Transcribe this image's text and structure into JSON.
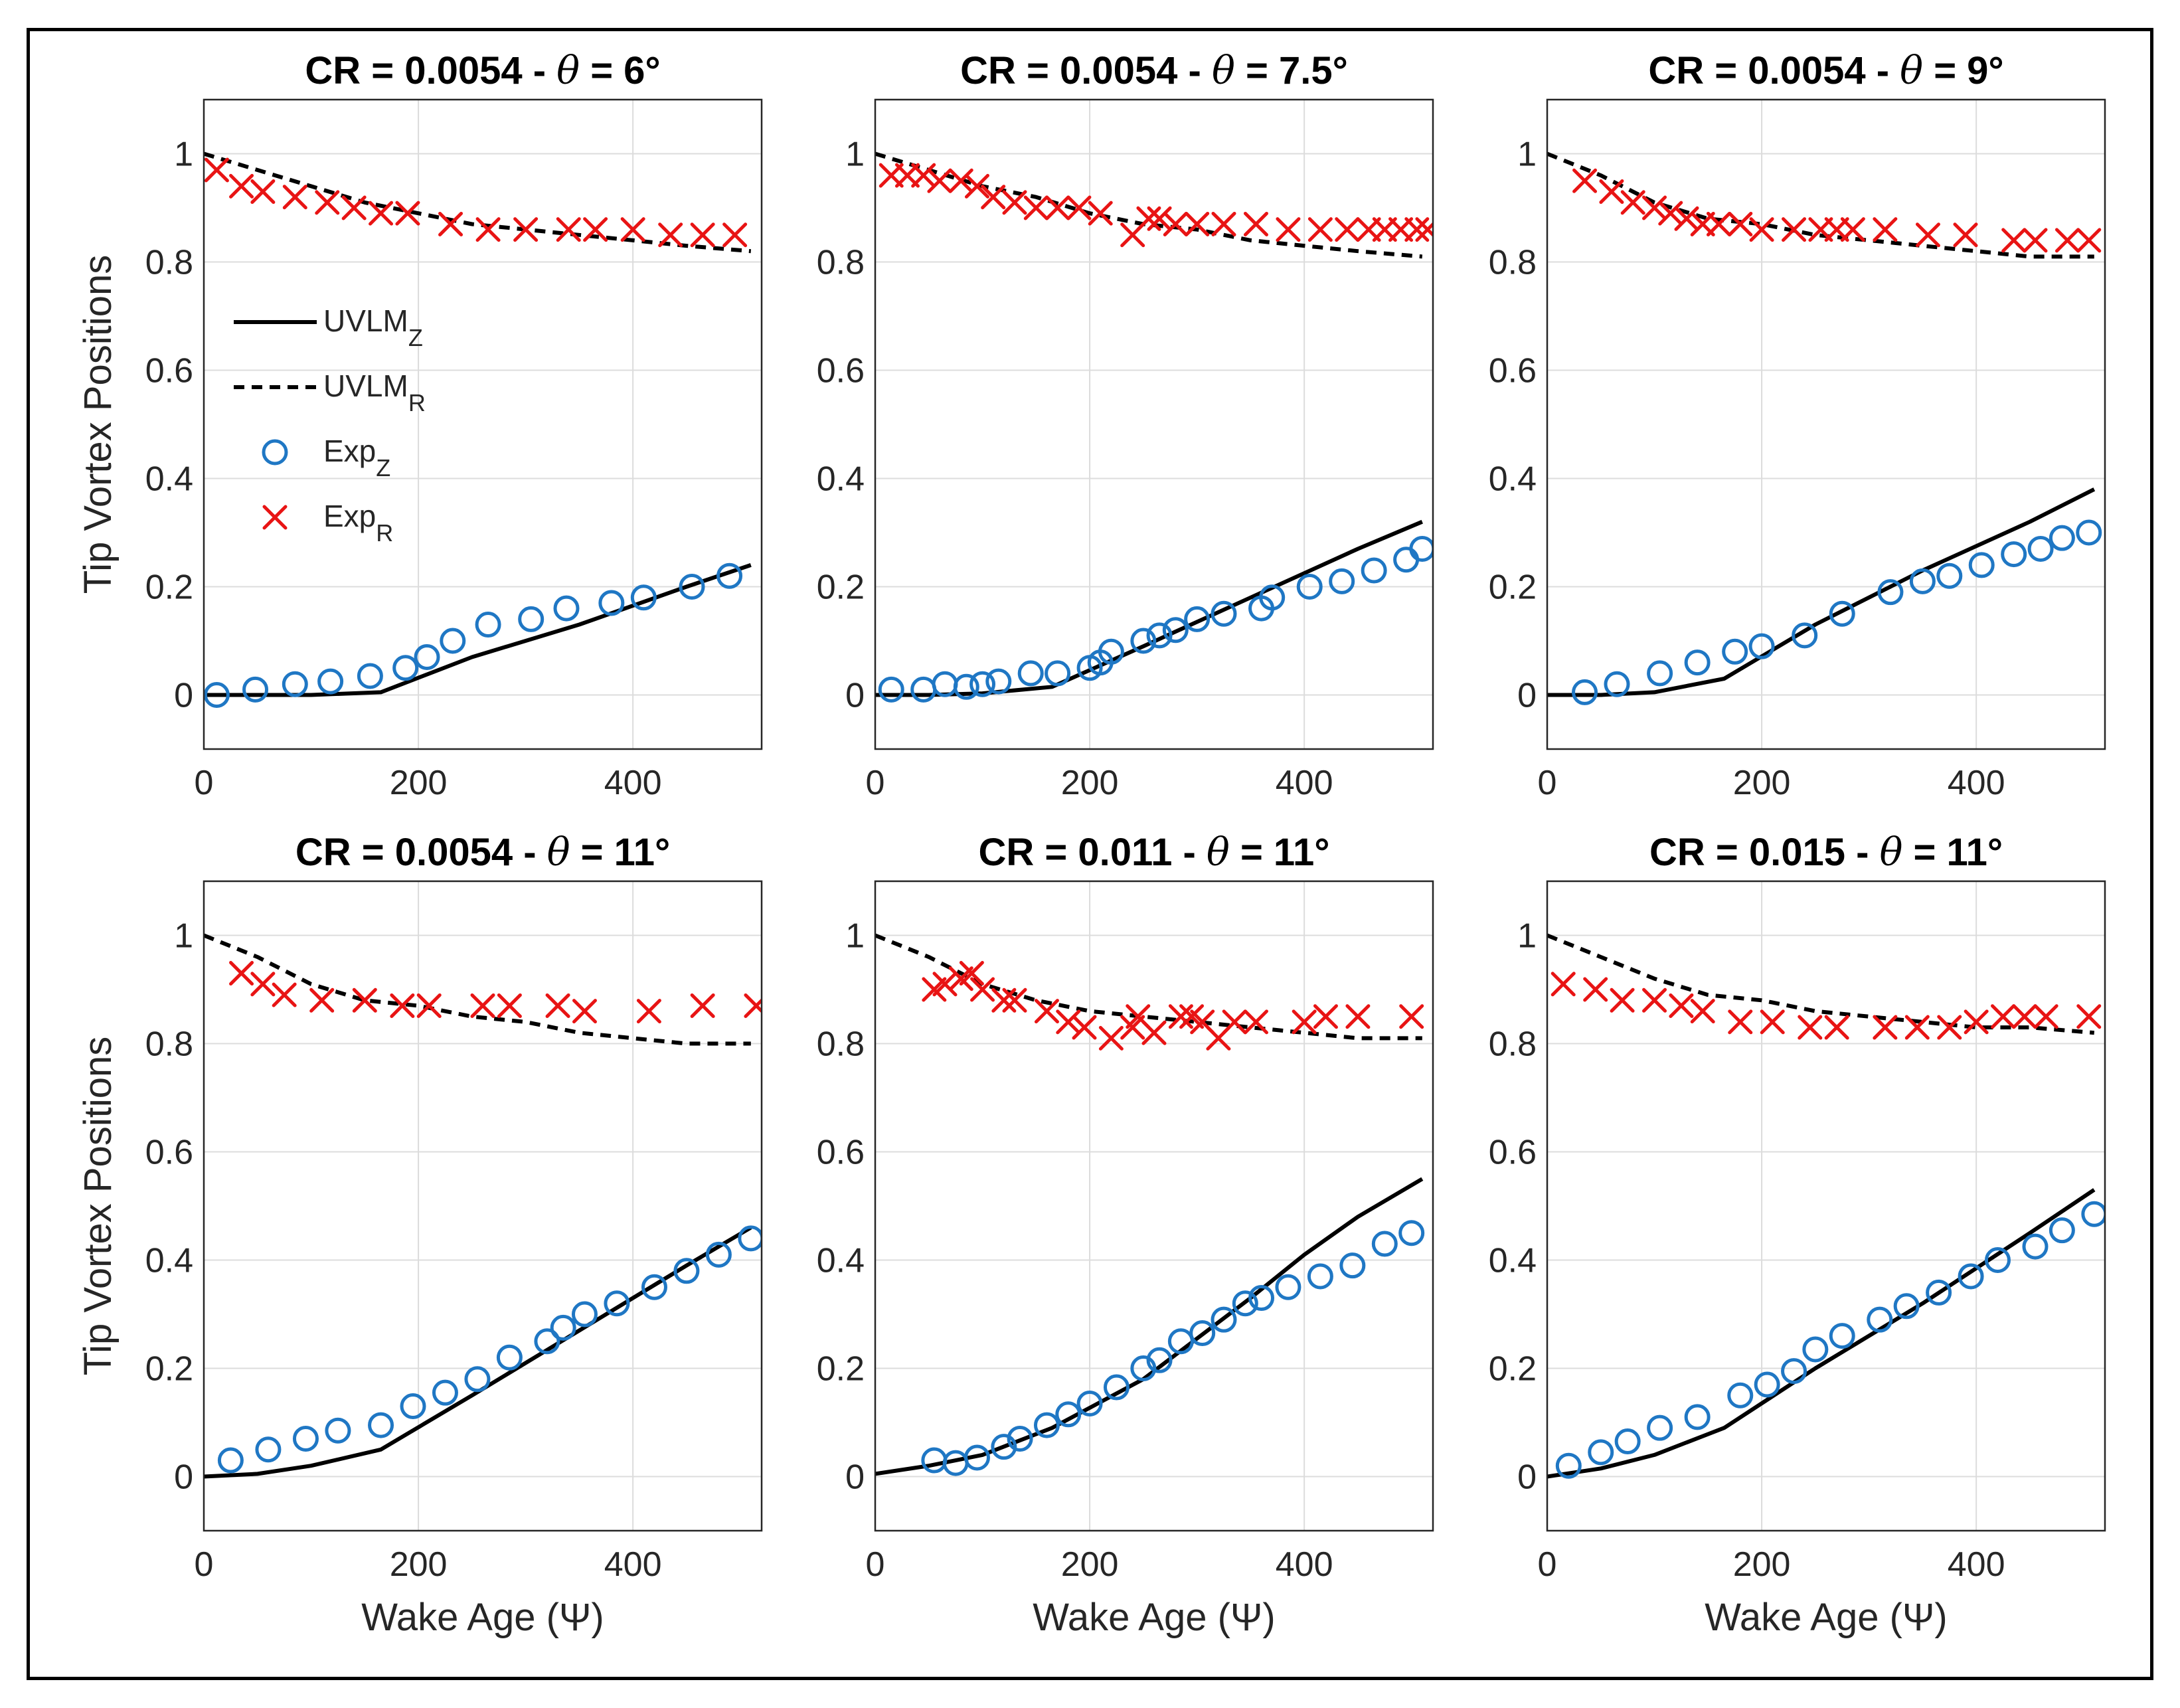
{
  "colors": {
    "ucolor": "#000000",
    "expZ": "#1f77c4",
    "expR": "#e81414",
    "grid": "#dcdcdc"
  },
  "legend": [
    {
      "key": "UVLM",
      "sub": "Z",
      "style": "solid"
    },
    {
      "key": "UVLM",
      "sub": "R",
      "style": "dashed"
    },
    {
      "key": "Exp",
      "sub": "Z",
      "style": "circle"
    },
    {
      "key": "Exp",
      "sub": "R",
      "style": "cross"
    }
  ],
  "chart_data": [
    {
      "type": "line",
      "title_pre": "CR = 0.0054 - ",
      "theta_symbol": "θ",
      "title_post": " = 6°",
      "xlabel": "",
      "ylabel": "Tip Vortex Positions",
      "xlim": [
        0,
        520
      ],
      "ylim": [
        -0.1,
        1.1
      ],
      "xticks": [
        0,
        200,
        400
      ],
      "yticks": [
        0,
        0.2,
        0.4,
        0.6,
        0.8,
        1
      ],
      "ytick_labels": [
        "0",
        "0.2",
        "0.4",
        "0.6",
        "0.8",
        "1"
      ],
      "series": [
        {
          "name": "UVLM_Z",
          "style": "solid",
          "x": [
            0,
            50,
            100,
            165,
            250,
            350,
            450,
            510
          ],
          "y": [
            0,
            0,
            0,
            0.005,
            0.07,
            0.13,
            0.2,
            0.24
          ]
        },
        {
          "name": "UVLM_R",
          "style": "dashed",
          "x": [
            0,
            50,
            100,
            150,
            200,
            250,
            300,
            350,
            400,
            450,
            510
          ],
          "y": [
            1.0,
            0.97,
            0.94,
            0.91,
            0.89,
            0.87,
            0.86,
            0.85,
            0.84,
            0.83,
            0.82
          ]
        },
        {
          "name": "Exp_Z",
          "style": "circle",
          "x": [
            12,
            48,
            85,
            118,
            155,
            188,
            208,
            232,
            265,
            305,
            338,
            380,
            410,
            455,
            490
          ],
          "y": [
            0.0,
            0.01,
            0.02,
            0.025,
            0.035,
            0.05,
            0.07,
            0.1,
            0.13,
            0.14,
            0.16,
            0.17,
            0.18,
            0.2,
            0.22
          ]
        },
        {
          "name": "Exp_R",
          "style": "cross",
          "x": [
            12,
            35,
            55,
            85,
            115,
            140,
            165,
            190,
            230,
            265,
            300,
            340,
            365,
            400,
            435,
            465,
            495
          ],
          "y": [
            0.97,
            0.94,
            0.93,
            0.92,
            0.91,
            0.9,
            0.89,
            0.89,
            0.87,
            0.86,
            0.86,
            0.86,
            0.86,
            0.86,
            0.85,
            0.85,
            0.85
          ]
        }
      ]
    },
    {
      "type": "line",
      "title_pre": "CR = 0.0054 - ",
      "theta_symbol": "θ",
      "title_post": " = 7.5°",
      "xlabel": "",
      "ylabel": "",
      "xlim": [
        0,
        520
      ],
      "ylim": [
        -0.1,
        1.1
      ],
      "xticks": [
        0,
        200,
        400
      ],
      "yticks": [
        0,
        0.2,
        0.4,
        0.6,
        0.8,
        1
      ],
      "ytick_labels": [
        "0",
        "0.2",
        "0.4",
        "0.6",
        "0.8",
        "1"
      ],
      "series": [
        {
          "name": "UVLM_Z",
          "style": "solid",
          "x": [
            0,
            50,
            100,
            165,
            250,
            350,
            450,
            510
          ],
          "y": [
            0,
            0,
            0.003,
            0.015,
            0.09,
            0.18,
            0.27,
            0.32
          ]
        },
        {
          "name": "UVLM_R",
          "style": "dashed",
          "x": [
            0,
            50,
            100,
            150,
            200,
            250,
            300,
            350,
            400,
            450,
            510
          ],
          "y": [
            1.0,
            0.97,
            0.94,
            0.92,
            0.89,
            0.87,
            0.86,
            0.84,
            0.83,
            0.82,
            0.81
          ]
        },
        {
          "name": "Exp_Z",
          "style": "circle",
          "x": [
            15,
            45,
            65,
            85,
            100,
            115,
            145,
            170,
            200,
            210,
            220,
            250,
            265,
            280,
            300,
            325,
            360,
            370,
            405,
            435,
            465,
            495,
            510
          ],
          "y": [
            0.01,
            0.01,
            0.02,
            0.015,
            0.02,
            0.025,
            0.04,
            0.04,
            0.05,
            0.06,
            0.08,
            0.1,
            0.11,
            0.12,
            0.14,
            0.15,
            0.16,
            0.18,
            0.2,
            0.21,
            0.23,
            0.25,
            0.27
          ]
        },
        {
          "name": "Exp_R",
          "style": "cross",
          "x": [
            15,
            30,
            45,
            60,
            80,
            95,
            110,
            130,
            150,
            170,
            190,
            210,
            240,
            255,
            265,
            280,
            300,
            325,
            355,
            385,
            415,
            440,
            460,
            475,
            490,
            505,
            515
          ],
          "y": [
            0.96,
            0.96,
            0.96,
            0.95,
            0.95,
            0.94,
            0.92,
            0.91,
            0.9,
            0.9,
            0.9,
            0.89,
            0.85,
            0.88,
            0.88,
            0.87,
            0.87,
            0.87,
            0.87,
            0.86,
            0.86,
            0.86,
            0.86,
            0.86,
            0.86,
            0.86,
            0.86
          ]
        }
      ]
    },
    {
      "type": "line",
      "title_pre": "CR = 0.0054 - ",
      "theta_symbol": "θ",
      "title_post": " = 9°",
      "xlabel": "",
      "ylabel": "",
      "xlim": [
        0,
        520
      ],
      "ylim": [
        -0.1,
        1.1
      ],
      "xticks": [
        0,
        200,
        400
      ],
      "yticks": [
        0,
        0.2,
        0.4,
        0.6,
        0.8,
        1
      ],
      "ytick_labels": [
        "0",
        "0.2",
        "0.4",
        "0.6",
        "0.8",
        "1"
      ],
      "series": [
        {
          "name": "UVLM_Z",
          "style": "solid",
          "x": [
            0,
            50,
            100,
            165,
            250,
            350,
            450,
            510
          ],
          "y": [
            0,
            0,
            0.005,
            0.03,
            0.13,
            0.23,
            0.32,
            0.38
          ]
        },
        {
          "name": "UVLM_R",
          "style": "dashed",
          "x": [
            0,
            50,
            100,
            150,
            200,
            250,
            300,
            350,
            400,
            450,
            510
          ],
          "y": [
            1.0,
            0.96,
            0.91,
            0.88,
            0.87,
            0.85,
            0.84,
            0.83,
            0.82,
            0.81,
            0.81
          ]
        },
        {
          "name": "Exp_Z",
          "style": "circle",
          "x": [
            35,
            65,
            105,
            140,
            175,
            200,
            240,
            275,
            320,
            350,
            375,
            405,
            435,
            460,
            480,
            505
          ],
          "y": [
            0.005,
            0.02,
            0.04,
            0.06,
            0.08,
            0.09,
            0.11,
            0.15,
            0.19,
            0.21,
            0.22,
            0.24,
            0.26,
            0.27,
            0.29,
            0.3
          ]
        },
        {
          "name": "Exp_R",
          "style": "cross",
          "x": [
            35,
            60,
            80,
            100,
            115,
            130,
            145,
            160,
            180,
            200,
            230,
            255,
            270,
            285,
            315,
            355,
            390,
            435,
            455,
            485,
            505
          ],
          "y": [
            0.95,
            0.93,
            0.91,
            0.9,
            0.89,
            0.88,
            0.87,
            0.87,
            0.87,
            0.86,
            0.86,
            0.86,
            0.86,
            0.86,
            0.86,
            0.85,
            0.85,
            0.84,
            0.84,
            0.84,
            0.84
          ]
        }
      ]
    },
    {
      "type": "line",
      "title_pre": "CR = 0.0054 - ",
      "theta_symbol": "θ",
      "title_post": " = 11°",
      "xlabel": "Wake Age (Ψ)",
      "ylabel": "Tip Vortex Positions",
      "xlim": [
        0,
        520
      ],
      "ylim": [
        -0.1,
        1.1
      ],
      "xticks": [
        0,
        200,
        400
      ],
      "yticks": [
        0,
        0.2,
        0.4,
        0.6,
        0.8,
        1
      ],
      "ytick_labels": [
        "0",
        "0.2",
        "0.4",
        "0.6",
        "0.8",
        "1"
      ],
      "series": [
        {
          "name": "UVLM_Z",
          "style": "solid",
          "x": [
            0,
            50,
            100,
            165,
            250,
            350,
            450,
            510
          ],
          "y": [
            0,
            0.005,
            0.02,
            0.05,
            0.15,
            0.27,
            0.39,
            0.46
          ]
        },
        {
          "name": "UVLM_R",
          "style": "dashed",
          "x": [
            0,
            50,
            100,
            150,
            200,
            250,
            300,
            350,
            400,
            450,
            510
          ],
          "y": [
            1.0,
            0.96,
            0.91,
            0.88,
            0.87,
            0.85,
            0.84,
            0.82,
            0.81,
            0.8,
            0.8
          ]
        },
        {
          "name": "Exp_Z",
          "style": "circle",
          "x": [
            25,
            60,
            95,
            125,
            165,
            195,
            225,
            255,
            285,
            320,
            335,
            355,
            385,
            420,
            450,
            480,
            510
          ],
          "y": [
            0.03,
            0.05,
            0.07,
            0.085,
            0.095,
            0.13,
            0.155,
            0.18,
            0.22,
            0.25,
            0.275,
            0.3,
            0.32,
            0.35,
            0.38,
            0.41,
            0.44
          ]
        },
        {
          "name": "Exp_R",
          "style": "cross",
          "x": [
            35,
            55,
            75,
            110,
            150,
            185,
            210,
            260,
            285,
            330,
            355,
            415,
            465,
            515
          ],
          "y": [
            0.93,
            0.91,
            0.89,
            0.88,
            0.88,
            0.87,
            0.87,
            0.87,
            0.87,
            0.87,
            0.86,
            0.86,
            0.87,
            0.87
          ]
        }
      ]
    },
    {
      "type": "line",
      "title_pre": "CR = 0.011 - ",
      "theta_symbol": "θ",
      "title_post": " = 11°",
      "xlabel": "Wake Age (Ψ)",
      "ylabel": "",
      "xlim": [
        0,
        520
      ],
      "ylim": [
        -0.1,
        1.1
      ],
      "xticks": [
        0,
        200,
        400
      ],
      "yticks": [
        0,
        0.2,
        0.4,
        0.6,
        0.8,
        1
      ],
      "ytick_labels": [
        "0",
        "0.2",
        "0.4",
        "0.6",
        "0.8",
        "1"
      ],
      "series": [
        {
          "name": "UVLM_Z",
          "style": "solid",
          "x": [
            0,
            50,
            100,
            165,
            250,
            350,
            400,
            450,
            510
          ],
          "y": [
            0.005,
            0.02,
            0.04,
            0.09,
            0.18,
            0.33,
            0.41,
            0.48,
            0.55
          ]
        },
        {
          "name": "UVLM_R",
          "style": "dashed",
          "x": [
            0,
            50,
            100,
            150,
            200,
            250,
            300,
            350,
            400,
            450,
            510
          ],
          "y": [
            1.0,
            0.96,
            0.91,
            0.88,
            0.86,
            0.85,
            0.84,
            0.83,
            0.82,
            0.81,
            0.81
          ]
        },
        {
          "name": "Exp_Z",
          "style": "circle",
          "x": [
            55,
            75,
            95,
            120,
            135,
            160,
            180,
            200,
            225,
            250,
            265,
            285,
            305,
            325,
            345,
            360,
            385,
            415,
            445,
            475,
            500
          ],
          "y": [
            0.03,
            0.025,
            0.035,
            0.055,
            0.07,
            0.095,
            0.115,
            0.135,
            0.165,
            0.2,
            0.215,
            0.25,
            0.265,
            0.29,
            0.32,
            0.33,
            0.35,
            0.37,
            0.39,
            0.43,
            0.45
          ]
        },
        {
          "name": "Exp_R",
          "style": "cross",
          "x": [
            55,
            65,
            80,
            90,
            100,
            120,
            130,
            160,
            180,
            195,
            220,
            240,
            245,
            260,
            285,
            295,
            305,
            320,
            335,
            355,
            400,
            420,
            450,
            500
          ],
          "y": [
            0.9,
            0.91,
            0.92,
            0.93,
            0.9,
            0.88,
            0.88,
            0.86,
            0.84,
            0.83,
            0.81,
            0.83,
            0.85,
            0.82,
            0.85,
            0.85,
            0.84,
            0.81,
            0.84,
            0.84,
            0.84,
            0.85,
            0.85,
            0.85
          ]
        }
      ]
    },
    {
      "type": "line",
      "title_pre": "CR = 0.015 - ",
      "theta_symbol": "θ",
      "title_post": " = 11°",
      "xlabel": "Wake Age (Ψ)",
      "ylabel": "",
      "xlim": [
        0,
        520
      ],
      "ylim": [
        -0.1,
        1.1
      ],
      "xticks": [
        0,
        200,
        400
      ],
      "yticks": [
        0,
        0.2,
        0.4,
        0.6,
        0.8,
        1
      ],
      "ytick_labels": [
        "0",
        "0.2",
        "0.4",
        "0.6",
        "0.8",
        "1"
      ],
      "series": [
        {
          "name": "UVLM_Z",
          "style": "solid",
          "x": [
            0,
            50,
            100,
            165,
            250,
            350,
            450,
            510
          ],
          "y": [
            0,
            0.015,
            0.04,
            0.09,
            0.2,
            0.32,
            0.45,
            0.53
          ]
        },
        {
          "name": "UVLM_R",
          "style": "dashed",
          "x": [
            0,
            50,
            100,
            150,
            200,
            250,
            300,
            350,
            400,
            450,
            510
          ],
          "y": [
            1.0,
            0.96,
            0.92,
            0.89,
            0.88,
            0.86,
            0.85,
            0.84,
            0.83,
            0.83,
            0.82
          ]
        },
        {
          "name": "Exp_Z",
          "style": "circle",
          "x": [
            20,
            50,
            75,
            105,
            140,
            180,
            205,
            230,
            250,
            275,
            310,
            335,
            365,
            395,
            420,
            455,
            480,
            510
          ],
          "y": [
            0.02,
            0.045,
            0.065,
            0.09,
            0.11,
            0.15,
            0.17,
            0.195,
            0.235,
            0.26,
            0.29,
            0.315,
            0.34,
            0.37,
            0.4,
            0.425,
            0.455,
            0.485
          ]
        },
        {
          "name": "Exp_R",
          "style": "cross",
          "x": [
            15,
            45,
            70,
            100,
            125,
            145,
            180,
            210,
            245,
            270,
            315,
            345,
            375,
            400,
            425,
            445,
            465,
            505
          ],
          "y": [
            0.91,
            0.9,
            0.88,
            0.88,
            0.87,
            0.86,
            0.84,
            0.84,
            0.83,
            0.83,
            0.83,
            0.83,
            0.83,
            0.84,
            0.85,
            0.85,
            0.85,
            0.85
          ]
        }
      ]
    }
  ]
}
